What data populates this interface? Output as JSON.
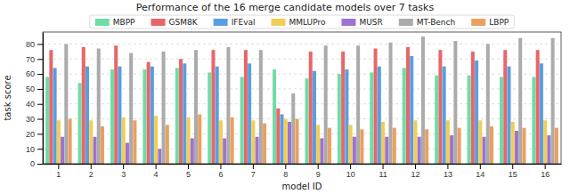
{
  "chart_data": {
    "type": "bar",
    "title": "Performance of the 16 merge candidate models over 7 tasks",
    "x_label": "model ID",
    "y_label": "task score",
    "categories": [
      "1",
      "2",
      "3",
      "4",
      "5",
      "6",
      "7",
      "8",
      "9",
      "10",
      "11",
      "12",
      "13",
      "14",
      "15",
      "16"
    ],
    "series": [
      {
        "name": "MBPP",
        "color": "#6fdca6",
        "values": [
          58,
          54,
          63,
          63,
          64,
          61,
          58,
          63,
          57,
          60,
          61,
          64,
          59,
          59,
          58,
          58
        ]
      },
      {
        "name": "GSM8K",
        "color": "#e6676a",
        "values": [
          76,
          78,
          79,
          68,
          70,
          76,
          76,
          37,
          75,
          75,
          77,
          78,
          76,
          75,
          76,
          76
        ]
      },
      {
        "name": "IFEval",
        "color": "#5b9ee0",
        "values": [
          64,
          65,
          65,
          65,
          67,
          65,
          67,
          33,
          62,
          63,
          65,
          72,
          65,
          69,
          65,
          67
        ]
      },
      {
        "name": "MMLUPro",
        "color": "#f2cd55",
        "values": [
          29,
          29,
          31,
          32,
          31,
          29,
          29,
          30,
          26,
          26,
          28,
          29,
          29,
          29,
          28,
          29
        ]
      },
      {
        "name": "MUSR",
        "color": "#9c74d0",
        "values": [
          18,
          18,
          14,
          10,
          17,
          17,
          18,
          28,
          17,
          18,
          18,
          18,
          19,
          18,
          22,
          19
        ]
      },
      {
        "name": "MT-Bench",
        "color": "#ababab",
        "values": [
          80,
          77,
          74,
          75,
          76,
          78,
          76,
          47,
          79,
          79,
          81,
          85,
          82,
          80,
          84,
          84
        ]
      },
      {
        "name": "LBPP",
        "color": "#e9a060",
        "values": [
          30,
          25,
          29,
          26,
          33,
          31,
          27,
          30,
          24,
          23,
          24,
          23,
          24,
          25,
          24,
          24
        ]
      }
    ],
    "ylim": [
      0,
      88
    ],
    "yticks": [
      0,
      10,
      20,
      30,
      40,
      50,
      60,
      70,
      80
    ],
    "grid": true,
    "legend": "top"
  }
}
